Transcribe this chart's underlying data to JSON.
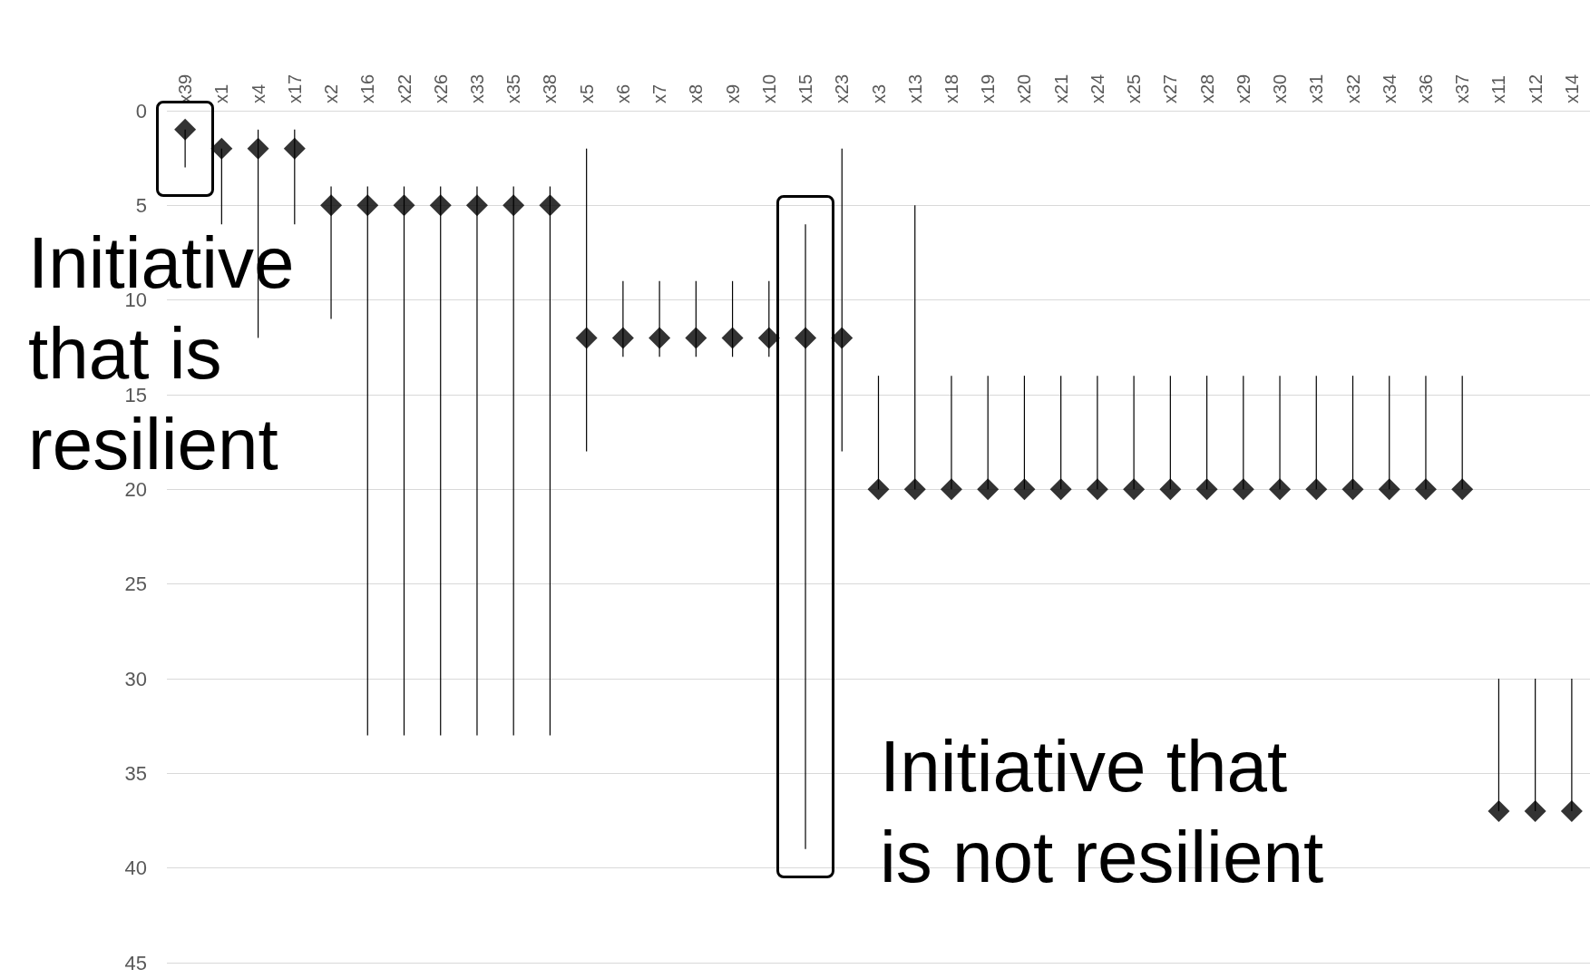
{
  "chart_data": {
    "type": "scatter",
    "categories": [
      "x39",
      "x1",
      "x4",
      "x17",
      "x2",
      "x16",
      "x22",
      "x26",
      "x33",
      "x35",
      "x38",
      "x5",
      "x6",
      "x7",
      "x8",
      "x9",
      "x10",
      "x15",
      "x23",
      "x3",
      "x13",
      "x18",
      "x19",
      "x20",
      "x21",
      "x24",
      "x25",
      "x27",
      "x28",
      "x29",
      "x30",
      "x31",
      "x32",
      "x34",
      "x36",
      "x37",
      "x11",
      "x12",
      "x14"
    ],
    "values": [
      1,
      2,
      2,
      2,
      5,
      5,
      5,
      5,
      5,
      5,
      5,
      12,
      12,
      12,
      12,
      12,
      12,
      12,
      12,
      20,
      20,
      20,
      20,
      20,
      20,
      20,
      20,
      20,
      20,
      20,
      20,
      20,
      20,
      20,
      20,
      20,
      37,
      37,
      37
    ],
    "errors": [
      [
        1,
        3
      ],
      [
        2,
        6
      ],
      [
        1,
        12
      ],
      [
        1,
        6
      ],
      [
        4,
        11
      ],
      [
        4,
        33
      ],
      [
        4,
        33
      ],
      [
        4,
        33
      ],
      [
        4,
        33
      ],
      [
        4,
        33
      ],
      [
        4,
        33
      ],
      [
        2,
        18
      ],
      [
        9,
        13
      ],
      [
        9,
        13
      ],
      [
        9,
        13
      ],
      [
        9,
        13
      ],
      [
        9,
        13
      ],
      [
        6,
        39
      ],
      [
        2,
        18
      ],
      [
        14,
        20
      ],
      [
        5,
        20
      ],
      [
        14,
        20
      ],
      [
        14,
        20
      ],
      [
        14,
        20
      ],
      [
        14,
        20
      ],
      [
        14,
        20
      ],
      [
        14,
        20
      ],
      [
        14,
        20
      ],
      [
        14,
        20
      ],
      [
        14,
        20
      ],
      [
        14,
        20
      ],
      [
        14,
        20
      ],
      [
        14,
        20
      ],
      [
        14,
        20
      ],
      [
        14,
        20
      ],
      [
        14,
        20
      ],
      [
        30,
        37
      ],
      [
        30,
        37
      ],
      [
        30,
        37
      ]
    ],
    "color": "#000000",
    "marker": "diamond",
    "ylim": [
      45,
      0
    ],
    "yticks": [
      0,
      5,
      10,
      15,
      20,
      25,
      30,
      35,
      40,
      45
    ],
    "grid": "y",
    "annotations": [
      "Initiative that is resilient",
      "Initiative that is not resilient"
    ]
  }
}
